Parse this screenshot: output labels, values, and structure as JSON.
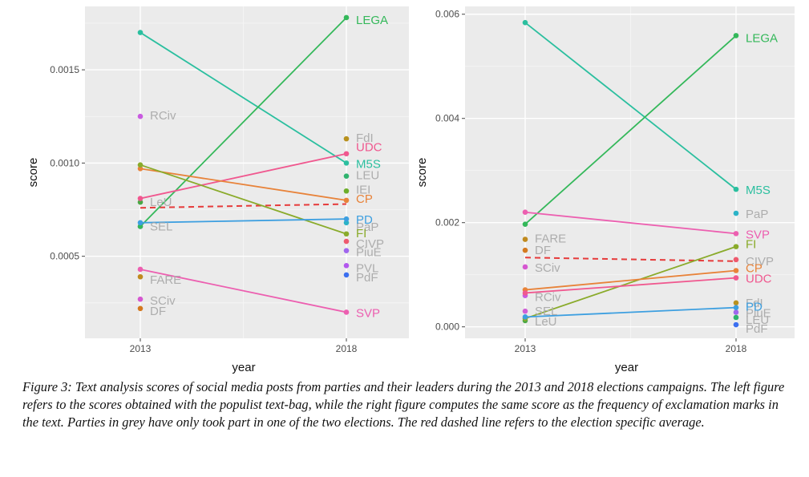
{
  "chart_data": [
    {
      "type": "line",
      "panel": "left",
      "xlabel": "year",
      "ylabel": "score",
      "x": [
        "2013",
        "2018"
      ],
      "ylim": [
        6e-05,
        0.00184
      ],
      "yticks": [
        {
          "value": 0.0005,
          "label": "0.0005"
        },
        {
          "value": 0.001,
          "label": "0.0010"
        },
        {
          "value": 0.0015,
          "label": "0.0015"
        }
      ],
      "series": [
        {
          "name": "M5S",
          "color": "#2bbf9f",
          "values": [
            0.0017,
            0.001
          ],
          "label_at": "2018",
          "label_color": "#2bbf9f"
        },
        {
          "name": "LEGA",
          "color": "#34b85a",
          "values": [
            0.00066,
            0.00178
          ],
          "label_at": "2018",
          "label_color": "#34b85a"
        },
        {
          "name": "UDC",
          "color": "#f0588f",
          "values": [
            0.00081,
            0.00105
          ],
          "label_at": "2018",
          "label_color": "#f0588f"
        },
        {
          "name": "CP",
          "color": "#e8833a",
          "values": [
            0.00097,
            0.0008
          ],
          "label_at": "2018",
          "label_color": "#e8833a"
        },
        {
          "name": "FI",
          "color": "#8aab2b",
          "values": [
            0.00099,
            0.00062
          ],
          "label_at": "2018",
          "label_color": "#8aab2b"
        },
        {
          "name": "PD",
          "color": "#3d9fe0",
          "values": [
            0.00068,
            0.0007
          ],
          "label_at": "2018",
          "label_color": "#3d9fe0"
        },
        {
          "name": "SVP",
          "color": "#ec5fb0",
          "values": [
            0.00043,
            0.0002
          ],
          "label_at": "2018",
          "label_color": "#ec5fb0"
        }
      ],
      "average": {
        "color": "#e63b3b",
        "values": [
          0.00076,
          0.00078
        ]
      },
      "single_points": [
        {
          "x": "2013",
          "value": 0.00125,
          "color": "#c95be0",
          "label": "RCiv"
        },
        {
          "x": "2013",
          "value": 0.00079,
          "color": "#4aa845",
          "label": "LeU"
        },
        {
          "x": "2013",
          "value": 0.00066,
          "color": "#d05fd5",
          "label": "SEL"
        },
        {
          "x": "2013",
          "value": 0.00039,
          "color": "#c08a1e",
          "label": "FARE"
        },
        {
          "x": "2013",
          "value": 0.00027,
          "color": "#d557d0",
          "label": "SCiv"
        },
        {
          "x": "2013",
          "value": 0.00022,
          "color": "#d4791f",
          "label": "DF"
        },
        {
          "x": "2018",
          "value": 0.00113,
          "color": "#b8911e",
          "label": "FdI"
        },
        {
          "x": "2018",
          "value": 0.00093,
          "color": "#2fb36e",
          "label": "LEU"
        },
        {
          "x": "2018",
          "value": 0.00085,
          "color": "#6dae2a",
          "label": "IEI"
        },
        {
          "x": "2018",
          "value": 0.00068,
          "color": "#2bb3c7",
          "label": "PaP"
        },
        {
          "x": "2018",
          "value": 0.00058,
          "color": "#ee5a6e",
          "label": "CIVP"
        },
        {
          "x": "2018",
          "value": 0.00053,
          "color": "#a066ee",
          "label": "PiuE"
        },
        {
          "x": "2018",
          "value": 0.00045,
          "color": "#b257ee",
          "label": "PVL"
        },
        {
          "x": "2018",
          "value": 0.0004,
          "color": "#3b6ff0",
          "label": "PdF"
        }
      ]
    },
    {
      "type": "line",
      "panel": "right",
      "xlabel": "year",
      "ylabel": "score",
      "x": [
        "2013",
        "2018"
      ],
      "ylim": [
        -0.00022,
        0.00615
      ],
      "yticks": [
        {
          "value": 0,
          "label": "0.000"
        },
        {
          "value": 0.002,
          "label": "0.002"
        },
        {
          "value": 0.004,
          "label": "0.004"
        },
        {
          "value": 0.006,
          "label": "0.006"
        }
      ],
      "series": [
        {
          "name": "M5S",
          "color": "#2bbf9f",
          "values": [
            0.00584,
            0.00264
          ],
          "label_at": "2018",
          "label_color": "#2bbf9f"
        },
        {
          "name": "LEGA",
          "color": "#34b85a",
          "values": [
            0.00197,
            0.00559
          ],
          "label_at": "2018",
          "label_color": "#34b85a"
        },
        {
          "name": "SVP",
          "color": "#ec5fb0",
          "values": [
            0.0022,
            0.00179
          ],
          "label_at": "2018",
          "label_color": "#ec5fb0"
        },
        {
          "name": "FI",
          "color": "#8aab2b",
          "values": [
            0.00016,
            0.00154
          ],
          "label_at": "2018",
          "label_color": "#8aab2b"
        },
        {
          "name": "CP",
          "color": "#e8833a",
          "values": [
            0.00071,
            0.00108
          ],
          "label_at": "2018",
          "label_color": "#e8833a"
        },
        {
          "name": "UDC",
          "color": "#f0588f",
          "values": [
            0.00065,
            0.00094
          ],
          "label_at": "2018",
          "label_color": "#f0588f"
        },
        {
          "name": "PD",
          "color": "#3d9fe0",
          "values": [
            0.00019,
            0.00037
          ],
          "label_at": "2018",
          "label_color": "#3d9fe0"
        }
      ],
      "average": {
        "color": "#e63b3b",
        "values": [
          0.00133,
          0.00126
        ]
      },
      "single_points": [
        {
          "x": "2013",
          "value": 0.00168,
          "color": "#c08a1e",
          "label": "FARE"
        },
        {
          "x": "2013",
          "value": 0.00147,
          "color": "#d4791f",
          "label": "DF"
        },
        {
          "x": "2013",
          "value": 0.00115,
          "color": "#d557d0",
          "label": "SCiv"
        },
        {
          "x": "2013",
          "value": 0.0006,
          "color": "#c95be0",
          "label": "RCiv"
        },
        {
          "x": "2013",
          "value": 0.0003,
          "color": "#d05fd5",
          "label": "SEL"
        },
        {
          "x": "2013",
          "value": 0.00012,
          "color": "#4aa845",
          "label": "LeU"
        },
        {
          "x": "2018",
          "value": 0.00218,
          "color": "#2bb3c7",
          "label": "PaP"
        },
        {
          "x": "2018",
          "value": 0.00129,
          "color": "#ee5a6e",
          "label": "CIVP"
        },
        {
          "x": "2018",
          "value": 0.00046,
          "color": "#b8911e",
          "label": "FdI"
        },
        {
          "x": "2018",
          "value": 0.00028,
          "color": "#a066ee",
          "label": "PiuE"
        },
        {
          "x": "2018",
          "value": 0.00018,
          "color": "#2fb36e",
          "label": "LEU"
        },
        {
          "x": "2018",
          "value": 4e-05,
          "color": "#3b6ff0",
          "label": "PdF"
        }
      ]
    }
  ],
  "caption": "Figure 3:  Text analysis scores of social media posts from parties and their leaders during the 2013 and 2018 elections campaigns. The left figure refers to the scores obtained with the populist text-bag, while the right figure computes the same score as the frequency of exclamation marks in the text. Parties in grey have only took part in one of the two elections. The red dashed line refers to the election specific average."
}
